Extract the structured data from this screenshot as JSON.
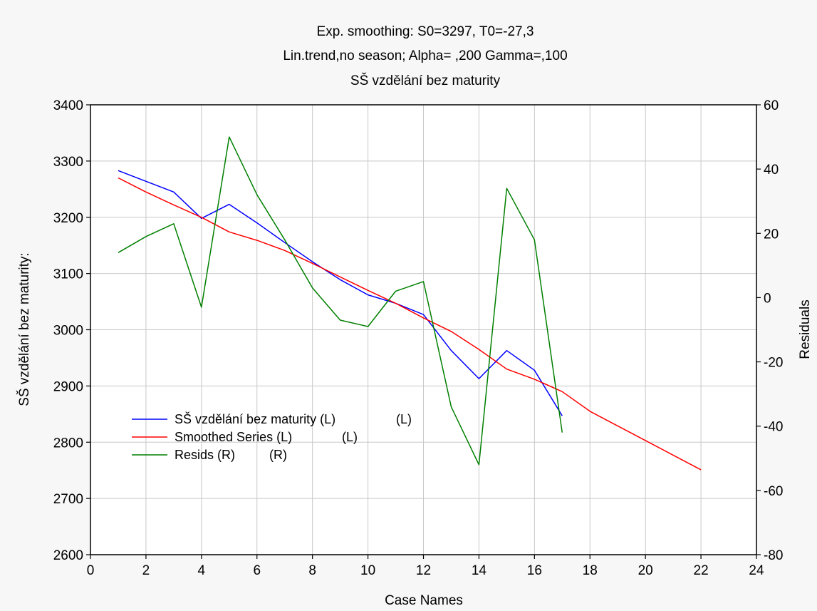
{
  "chart_data": {
    "type": "line",
    "title_lines": [
      "Exp. smoothing:  S0=3297, T0=-27,3",
      "Lin.trend,no season; Alpha=  ,200 Gamma=,100",
      "SŠ vzdělání bez maturity"
    ],
    "xlabel": "Case Names",
    "ylabel_left": "SŠ vzdělání bez maturity:",
    "ylabel_right": "Residuals",
    "xlim": [
      0,
      24
    ],
    "xticks": [
      0,
      2,
      4,
      6,
      8,
      10,
      12,
      14,
      16,
      18,
      20,
      22,
      24
    ],
    "ylim_left": [
      2600,
      3400
    ],
    "yticks_left": [
      2600,
      2700,
      2800,
      2900,
      3000,
      3100,
      3200,
      3300,
      3400
    ],
    "ylim_right": [
      -80,
      60
    ],
    "yticks_right": [
      -80,
      -60,
      -40,
      -20,
      0,
      20,
      40,
      60
    ],
    "grid": true,
    "legend_position": "bottom-left",
    "series": [
      {
        "name": "SŠ vzdělání bez maturity (L)",
        "legend_suffix": "(L)",
        "axis": "left",
        "color": "#0000ff",
        "x": [
          1,
          2,
          3,
          4,
          5,
          6,
          7,
          8,
          9,
          10,
          11,
          12,
          13,
          14,
          15,
          16,
          17
        ],
        "values": [
          3283,
          3264,
          3245,
          3198,
          3223,
          3190,
          3155,
          3121,
          3089,
          3062,
          3047,
          3027,
          2963,
          2913,
          2963,
          2928,
          2847
        ]
      },
      {
        "name": "Smoothed Series (L)",
        "legend_suffix": "(L)",
        "axis": "left",
        "color": "#ff0000",
        "x": [
          1,
          2,
          3,
          4,
          5,
          6,
          7,
          8,
          9,
          10,
          11,
          12,
          13,
          14,
          15,
          16,
          17,
          18,
          19,
          20,
          21,
          22
        ],
        "values": [
          3270,
          3245,
          3222,
          3200,
          3174,
          3159,
          3141,
          3118,
          3094,
          3070,
          3047,
          3021,
          2997,
          2965,
          2930,
          2912,
          2890,
          2855,
          2829,
          2803,
          2777,
          2751
        ]
      },
      {
        "name": "Resids (R)",
        "legend_suffix": "(R)",
        "axis": "right",
        "color": "#007f00",
        "x": [
          1,
          2,
          3,
          4,
          5,
          6,
          7,
          8,
          9,
          10,
          11,
          12,
          13,
          14,
          15,
          16,
          17
        ],
        "values": [
          14,
          19,
          23,
          -3,
          50,
          32,
          18,
          3,
          -7,
          -9,
          2,
          5,
          -34,
          -52,
          34,
          18,
          -42
        ]
      }
    ]
  }
}
